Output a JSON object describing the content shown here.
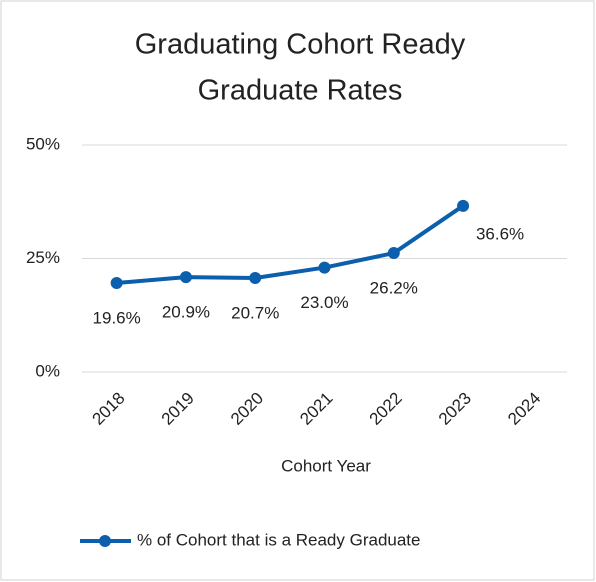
{
  "chart_data": {
    "type": "line",
    "title": [
      "Graduating Cohort Ready",
      "Graduate Rates"
    ],
    "x_label": "Cohort Year",
    "categories": [
      "2018",
      "2019",
      "2020",
      "2021",
      "2022",
      "2023",
      "2024"
    ],
    "series": [
      {
        "name": "% of Cohort that is a Ready Graduate",
        "color": "#0b5fad",
        "values": [
          19.6,
          20.9,
          20.7,
          23.0,
          26.2,
          36.6,
          null
        ],
        "value_labels": [
          "19.6%",
          "20.9%",
          "20.7%",
          "23.0%",
          "26.2%",
          "36.6%",
          null
        ]
      }
    ],
    "ylim": [
      0,
      50
    ],
    "yticks": [
      {
        "value": 0,
        "label": "0%"
      },
      {
        "value": 25,
        "label": "25%"
      },
      {
        "value": 50,
        "label": "50%"
      }
    ],
    "grid": true,
    "legend": "bottom"
  }
}
